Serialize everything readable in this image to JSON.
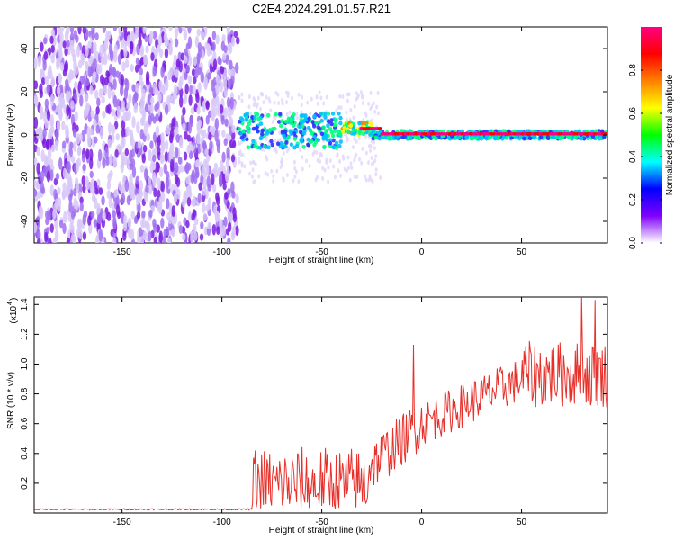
{
  "title": "C2E4.2024.291.01.57.R21",
  "chart_data": [
    {
      "type": "heatmap",
      "name": "spectrogram",
      "xlabel": "Height of straight line (km)",
      "ylabel": "Frequency (Hz)",
      "xlim": [
        -194,
        93
      ],
      "ylim": [
        -50,
        50
      ],
      "xticks": [
        -150,
        -100,
        -50,
        0,
        50
      ],
      "yticks": [
        -40,
        -20,
        0,
        20,
        40
      ],
      "colorbar": {
        "label": "Normalized spectral amplitude",
        "range": [
          0,
          1
        ],
        "ticks": [
          "0.0",
          "0.2",
          "0.4",
          "0.6",
          "0.8"
        ],
        "colors": [
          "#ffffff",
          "#8000ff",
          "#0000ff",
          "#00ffff",
          "#00ff00",
          "#ffff00",
          "#ff8000",
          "#ff0000",
          "#ff0080"
        ]
      },
      "regions": [
        {
          "x_from": -194,
          "x_to": -92,
          "description_color": "#8a2be2",
          "freq_spread": 50,
          "amplitude": 0.15
        },
        {
          "x_from": -92,
          "x_to": -40,
          "freq_center": 2,
          "freq_spread": 8,
          "amplitude": 0.35
        },
        {
          "x_from": -40,
          "x_to": -25,
          "freq_center": 3,
          "freq_spread": 3,
          "amplitude": 0.6
        },
        {
          "x_from": -25,
          "x_to": 93,
          "freq_center": 0,
          "freq_spread": 2,
          "amplitude": 0.9
        }
      ]
    },
    {
      "type": "line",
      "name": "snr",
      "xlabel": "Height of straight line (km)",
      "ylabel": "SNR (10 * v/v)",
      "multiplier": "(x10",
      "multiplier_exp": "4",
      "xlim": [
        -194,
        93
      ],
      "ylim": [
        0,
        1.45
      ],
      "xticks": [
        -150,
        -100,
        -50,
        0,
        50
      ],
      "yticks": [
        "0.2",
        "0.4",
        "0.6",
        "0.8",
        "1.0",
        "1.2",
        "1.4"
      ],
      "color": "#e8302a",
      "series_segments": [
        {
          "x": [
            -194,
            -85
          ],
          "baseline": 0.02,
          "noise": 0.01
        },
        {
          "x": [
            -85,
            -27
          ],
          "baseline": 0.1,
          "noise": 0.25
        },
        {
          "x": [
            -27,
            0
          ],
          "baseline_start": 0.35,
          "baseline_end": 0.6,
          "noise": 0.15
        },
        {
          "x": [
            0,
            50
          ],
          "baseline_start": 0.6,
          "baseline_end": 0.9,
          "noise": 0.12
        },
        {
          "x": [
            50,
            93
          ],
          "baseline": 0.95,
          "noise": 0.2
        }
      ],
      "peaks": [
        {
          "x": -4,
          "y": 1.13
        },
        {
          "x": 80,
          "y": 1.45
        },
        {
          "x": 87,
          "y": 1.43
        }
      ]
    }
  ]
}
